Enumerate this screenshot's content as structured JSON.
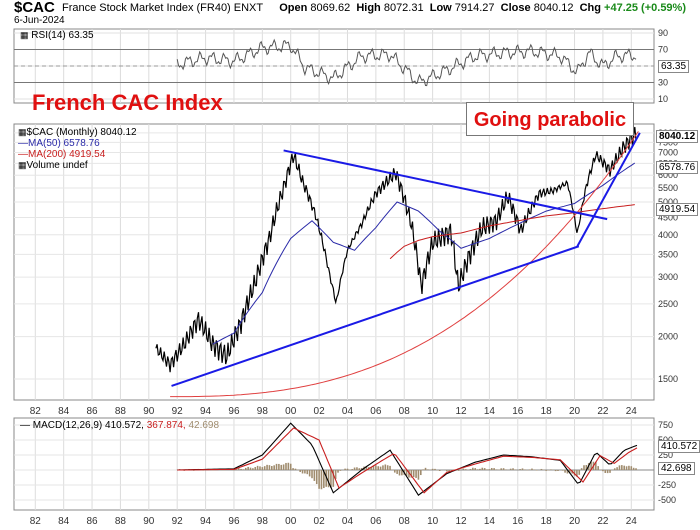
{
  "header": {
    "symbol": "$CAC",
    "description": "France Stock Market Index (FR40)  ENXT",
    "date": "6-Jun-2024",
    "open_label": "Open",
    "open": "8069.62",
    "high_label": "High",
    "high": "8072.31",
    "low_label": "Low",
    "low": "7914.27",
    "close_label": "Close",
    "close": "8040.12",
    "chg_label": "Chg",
    "chg": "+47.25 (+0.59%)"
  },
  "annotations": {
    "title": "French CAC Index",
    "callout": "Going parabolic"
  },
  "colors": {
    "price": "#000000",
    "ma50": "#2a2aa8",
    "ma200": "#c81e1e",
    "trendline": "#1a1ae6",
    "parabola": "#e04040",
    "rsi": "#555555",
    "macd": "#000000",
    "signal": "#c81e1e",
    "histogram": "#a08c6e"
  },
  "rsi_panel": {
    "legend": "RSI(14) 63.35",
    "value_tag": "63.35",
    "ticks": [
      "90",
      "70",
      "50",
      "30",
      "10"
    ],
    "overbought": 70,
    "oversold": 30
  },
  "price_panel": {
    "legend_main": "$CAC (Monthly) 8040.12",
    "legend_ma50": "MA(50) 6578.76",
    "legend_ma200": "MA(200) 4919.54",
    "legend_volume": "Volume undef",
    "tag_close": "8040.12",
    "tag_ma50": "6578.76",
    "tag_ma200": "4919.54",
    "ticks": [
      "8000",
      "7500",
      "7000",
      "6500",
      "6000",
      "5500",
      "5000",
      "4500",
      "4000",
      "3500",
      "3000",
      "2500",
      "2000",
      "1500"
    ]
  },
  "macd_panel": {
    "legend_name": "MACD(12,26,9)",
    "legend_macd": "410.572,",
    "legend_signal": "367.874,",
    "legend_hist": "42.698",
    "tag_macd": "410.572",
    "tag_hist": "42.698",
    "ticks": [
      "750",
      "500",
      "250",
      "0",
      "-250",
      "-500"
    ]
  },
  "x_axis": {
    "labels": [
      "82",
      "84",
      "86",
      "88",
      "90",
      "92",
      "94",
      "96",
      "98",
      "00",
      "02",
      "04",
      "06",
      "08",
      "10",
      "12",
      "14",
      "16",
      "18",
      "20",
      "22",
      "24"
    ]
  },
  "chart_data": [
    {
      "type": "line",
      "title": "RSI(14)",
      "ylim": [
        0,
        100
      ],
      "series": [
        {
          "name": "RSI(14)",
          "x": [
            1992,
            1994,
            1996,
            1998,
            2000,
            2001,
            2003,
            2005,
            2007,
            2009,
            2011,
            2013,
            2015,
            2017,
            2019,
            2020.2,
            2021,
            2022,
            2023,
            2024.4
          ],
          "values": [
            52,
            60,
            56,
            72,
            75,
            48,
            35,
            62,
            64,
            30,
            45,
            62,
            66,
            68,
            62,
            42,
            66,
            50,
            62,
            63.35
          ]
        }
      ]
    },
    {
      "type": "line",
      "title": "$CAC (Monthly) 8040.12",
      "ylabel": "",
      "ylim": [
        1300,
        8500
      ],
      "y_scale": "log",
      "series": [
        {
          "name": "$CAC",
          "x": [
            1990.5,
            1991.5,
            1992.5,
            1993.5,
            1994.5,
            1995.5,
            1996.5,
            1997.5,
            1998.5,
            1999.5,
            2000.2,
            2000.8,
            2001.8,
            2002.7,
            2003.2,
            2004,
            2005,
            2006,
            2007.4,
            2008.5,
            2009.2,
            2010,
            2011.3,
            2011.8,
            2012.5,
            2013.5,
            2014.5,
            2015.3,
            2016.2,
            2017.5,
            2018.5,
            2019.5,
            2020.2,
            2020.8,
            2021.5,
            2022.5,
            2023.5,
            2024.4
          ],
          "values": [
            1850,
            1650,
            1900,
            2250,
            1900,
            1750,
            2200,
            2900,
            3900,
            5500,
            6900,
            5800,
            4500,
            3100,
            2500,
            3600,
            4300,
            5300,
            6100,
            4300,
            2800,
            3800,
            4100,
            2800,
            3400,
            4200,
            4400,
            5200,
            4100,
            5300,
            5400,
            5700,
            4000,
            5500,
            6900,
            6200,
            7300,
            8040.12
          ]
        },
        {
          "name": "MA(50)",
          "x": [
            1994.5,
            1996,
            1998,
            2000,
            2001.5,
            2003,
            2004.5,
            2006,
            2007.5,
            2009,
            2010.5,
            2012,
            2014,
            2016,
            2018,
            2020,
            2022,
            2024.4
          ],
          "values": [
            1900,
            2050,
            2700,
            3900,
            4400,
            3800,
            3600,
            4200,
            5000,
            4700,
            4100,
            3650,
            3900,
            4300,
            4700,
            4950,
            5600,
            6578.76
          ]
        },
        {
          "name": "MA(200)",
          "x": [
            2007,
            2008,
            2009,
            2010,
            2012,
            2014,
            2016,
            2018,
            2020,
            2022,
            2024.4
          ],
          "values": [
            3400,
            3700,
            3850,
            3950,
            4050,
            4250,
            4400,
            4550,
            4650,
            4780,
            4919.54
          ]
        }
      ],
      "annotations": [
        "Lower trendline from 1992 low (~1450) through 2020 low (~3750)",
        "Upper trendline from 2000 high (~6950) to ~2021.5 (~4500)",
        "Parabolic curve rising from ~1992 to 2024"
      ]
    },
    {
      "type": "line",
      "title": "MACD(12,26,9)",
      "ylim": [
        -750,
        900
      ],
      "series": [
        {
          "name": "MACD",
          "x": [
            1992,
            1996,
            1998,
            2000,
            2001.5,
            2003,
            2005,
            2007,
            2009,
            2011,
            2013,
            2015,
            2017,
            2019,
            2020.3,
            2021.5,
            2022.5,
            2023.5,
            2024.4
          ],
          "values": [
            0,
            20,
            250,
            780,
            420,
            -380,
            0,
            330,
            -420,
            -60,
            130,
            250,
            220,
            160,
            -250,
            300,
            80,
            330,
            410.572
          ]
        },
        {
          "name": "Signal",
          "x": [
            1992,
            1996,
            1998,
            2000.2,
            2002,
            2003.4,
            2005,
            2007.3,
            2009.4,
            2011,
            2013,
            2015,
            2017,
            2019,
            2020.6,
            2021.8,
            2022.8,
            2023.8,
            2024.4
          ],
          "values": [
            0,
            10,
            180,
            700,
            500,
            -300,
            -50,
            280,
            -380,
            -40,
            100,
            230,
            210,
            170,
            -200,
            240,
            110,
            290,
            367.874
          ]
        },
        {
          "name": "Histogram",
          "x": [
            2000,
            2003,
            2007,
            2009,
            2020.3,
            2024.4
          ],
          "values": [
            80,
            -80,
            50,
            -60,
            -70,
            42.698
          ]
        }
      ]
    }
  ]
}
